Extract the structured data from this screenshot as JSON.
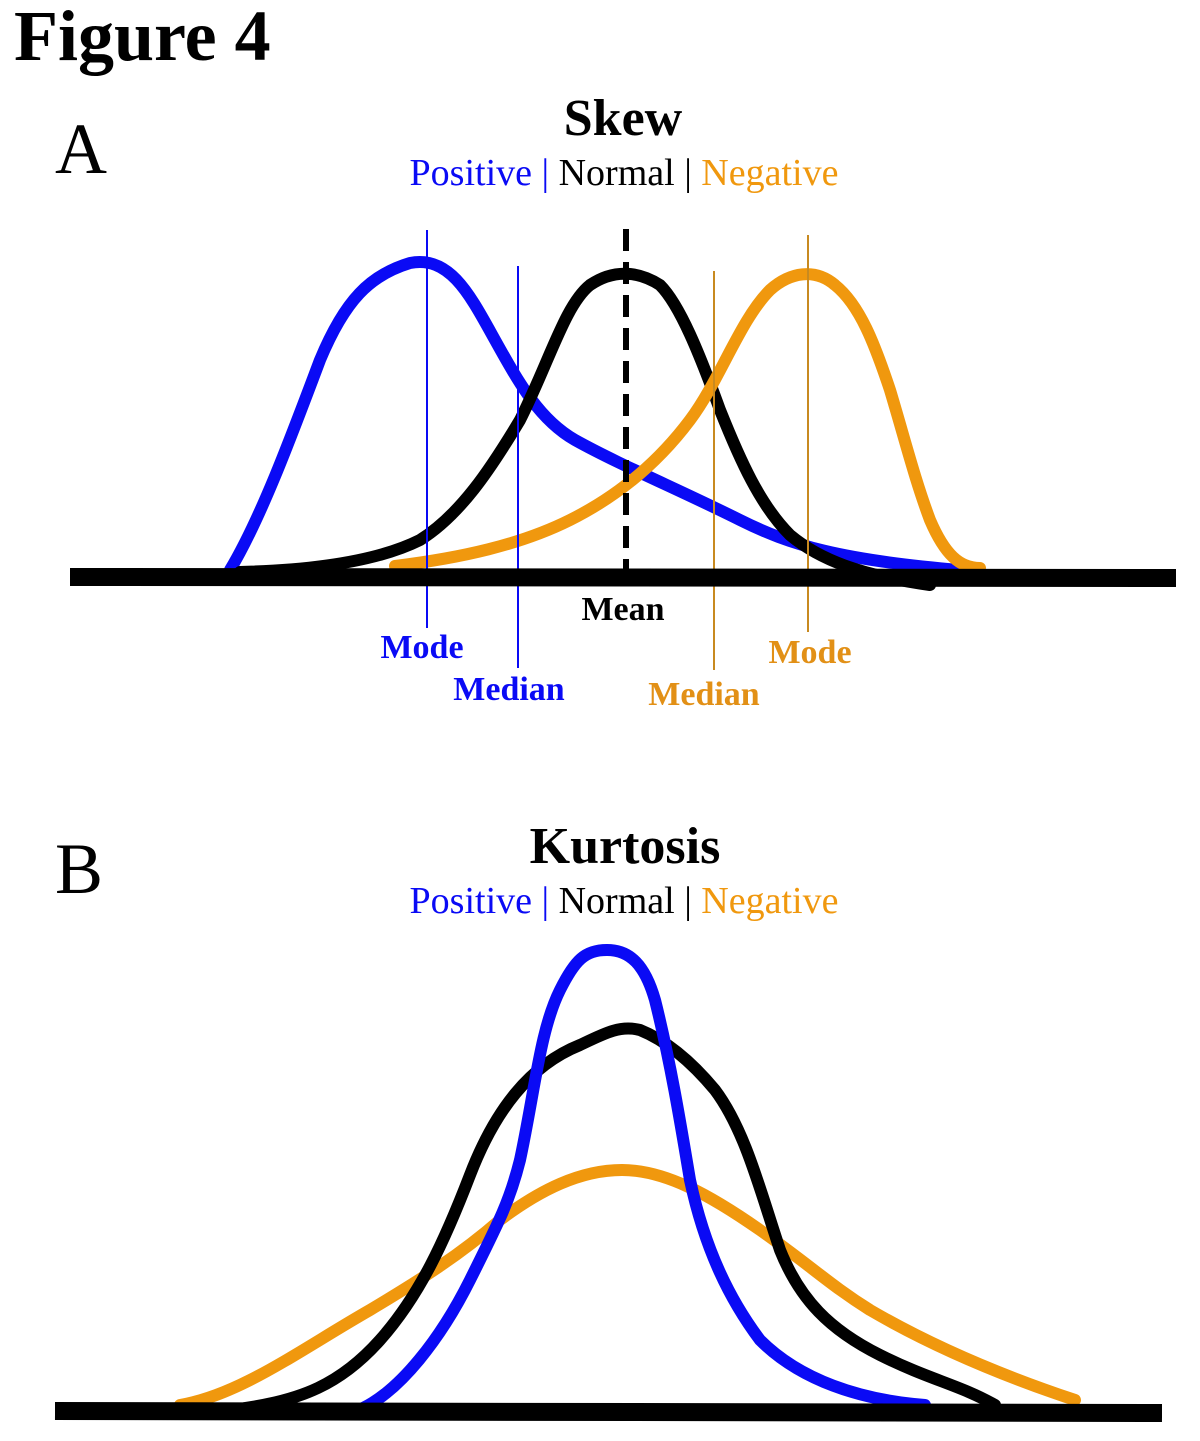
{
  "figure_title": "Figure 4",
  "colors": {
    "positive": "#0a0af5",
    "normal": "#000000",
    "negative": "#f0980e",
    "text": "#000000"
  },
  "legend": {
    "positive": "Positive",
    "separator": "|",
    "normal": "Normal",
    "negative": "Negative"
  },
  "panels": [
    {
      "letter": "A",
      "title": "Skew",
      "markers": {
        "mean": "Mean",
        "positive_mode": "Mode",
        "positive_median": "Median",
        "negative_median": "Median",
        "negative_mode": "Mode"
      }
    },
    {
      "letter": "B",
      "title": "Kurtosis"
    }
  ]
}
